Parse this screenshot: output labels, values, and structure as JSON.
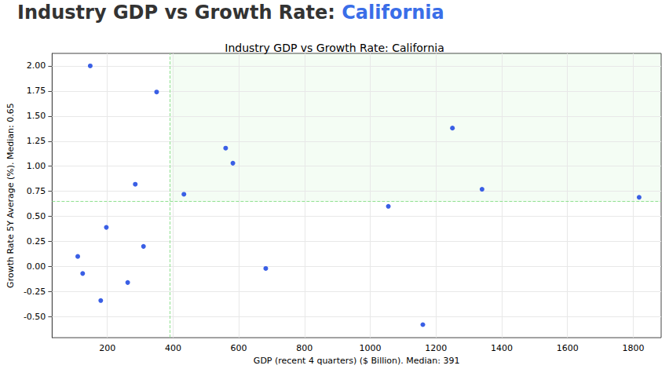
{
  "header": {
    "title": "Industry GDP vs Growth Rate:",
    "highlight": "California"
  },
  "chart_data": {
    "type": "scatter",
    "title": "Industry GDP vs Growth Rate: California",
    "x_label": "GDP (recent 4 quarters) ($ Billion). Median: 391",
    "y_label": "Growth Rate 5Y Average (%). Median: 0.65",
    "x": [
      110,
      125,
      148,
      180,
      197,
      262,
      285,
      310,
      350,
      433,
      560,
      582,
      682,
      1055,
      1160,
      1250,
      1340,
      1818
    ],
    "values": [
      0.1,
      -0.07,
      2.0,
      -0.34,
      0.39,
      -0.16,
      0.82,
      0.2,
      1.74,
      0.72,
      1.18,
      1.03,
      -0.02,
      0.6,
      -0.58,
      1.38,
      0.77,
      0.69
    ],
    "color": "#3a5fe5",
    "median_x": 391,
    "median_y": 0.65,
    "xlim": [
      32,
      1885
    ],
    "xticks": [
      200,
      400,
      600,
      800,
      1000,
      1200,
      1400,
      1600,
      1800
    ],
    "ylim": [
      -0.71,
      2.125
    ],
    "yticks": [
      {
        "value": -0.5,
        "label": "-0.50"
      },
      {
        "value": -0.25,
        "label": "-0.25"
      },
      {
        "value": 0,
        "label": "0.00"
      },
      {
        "value": 0.25,
        "label": "0.25"
      },
      {
        "value": 0.5,
        "label": "0.50"
      },
      {
        "value": 0.75,
        "label": "0.75"
      },
      {
        "value": 1.0,
        "label": "1.00"
      },
      {
        "value": 1.25,
        "label": "1.25"
      },
      {
        "value": 1.5,
        "label": "1.50"
      },
      {
        "value": 1.75,
        "label": "1.75"
      },
      {
        "value": 2.0,
        "label": "2.00"
      }
    ],
    "grid": true
  }
}
